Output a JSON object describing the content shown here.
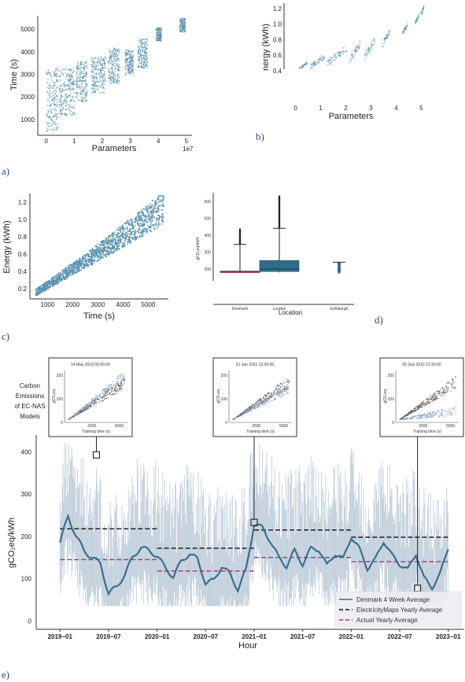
{
  "panel_labels": [
    "a)",
    "b)",
    "c)",
    "d)",
    "e)"
  ],
  "colors": {
    "scatter": "#5b93b0",
    "box_fill": "#2f6d8a",
    "median_magenta": "#b0206e",
    "noisy_series": "#aebfcf",
    "avg_line": "#3a6f90",
    "black_dash": "#111111",
    "actual_yearly": "#b0307a",
    "inset_blue": "#8aa6c6",
    "inset_dark": "#444444"
  },
  "chart_data": [
    {
      "id": "a",
      "type": "scatter",
      "xlabel": "Parameters",
      "ylabel": "Time (s)",
      "x_offset_text": "1e7",
      "xticks": [
        "0",
        "1",
        "2",
        "3",
        "4",
        "5"
      ],
      "yticks": [
        "1000",
        "2000",
        "3000",
        "4000",
        "5000"
      ],
      "xlim": [
        -0.3,
        5.2
      ],
      "ylim": [
        300,
        5600
      ],
      "clusters": [
        {
          "x": [
            0.0,
            0.4
          ],
          "y": [
            500,
            3300
          ]
        },
        {
          "x": [
            0.45,
            1.0
          ],
          "y": [
            1200,
            3300
          ]
        },
        {
          "x": [
            1.05,
            1.45
          ],
          "y": [
            1800,
            3600
          ]
        },
        {
          "x": [
            1.6,
            2.1
          ],
          "y": [
            2200,
            3800
          ]
        },
        {
          "x": [
            2.2,
            2.6
          ],
          "y": [
            2600,
            4200
          ]
        },
        {
          "x": [
            2.8,
            3.1
          ],
          "y": [
            3000,
            4100
          ]
        },
        {
          "x": [
            3.25,
            3.6
          ],
          "y": [
            3300,
            4600
          ]
        },
        {
          "x": [
            3.9,
            4.1
          ],
          "y": [
            4500,
            5100
          ]
        },
        {
          "x": [
            4.75,
            4.95
          ],
          "y": [
            4900,
            5500
          ]
        }
      ]
    },
    {
      "id": "b",
      "type": "scatter",
      "xlabel": "Parameters",
      "ylabel": "nergy (kWh)",
      "xticks": [
        "0",
        "1",
        "2",
        "3",
        "4",
        "5"
      ],
      "yticks": [
        "0.4",
        "0.6",
        "0.8",
        "1.0",
        "1.2"
      ],
      "xlim": [
        -0.3,
        5.3
      ],
      "ylim": [
        0.42,
        1.27
      ],
      "clusters": [
        {
          "x": [
            0.3,
            0.6
          ],
          "y": [
            0.42,
            0.52
          ]
        },
        {
          "x": [
            0.7,
            1.3
          ],
          "y": [
            0.42,
            0.62
          ]
        },
        {
          "x": [
            1.4,
            2.2
          ],
          "y": [
            0.45,
            0.75
          ]
        },
        {
          "x": [
            2.3,
            2.7
          ],
          "y": [
            0.5,
            0.8
          ]
        },
        {
          "x": [
            2.9,
            3.3
          ],
          "y": [
            0.55,
            0.85
          ]
        },
        {
          "x": [
            3.6,
            3.9
          ],
          "y": [
            0.7,
            0.95
          ]
        },
        {
          "x": [
            4.4,
            4.6
          ],
          "y": [
            0.85,
            1.05
          ]
        },
        {
          "x": [
            4.9,
            5.1
          ],
          "y": [
            1.0,
            1.18
          ]
        },
        {
          "x": [
            5.15,
            5.25
          ],
          "y": [
            1.12,
            1.25
          ]
        }
      ]
    },
    {
      "id": "c",
      "type": "scatter",
      "xlabel": "Time (s)",
      "ylabel": "Energy (kWh)",
      "xticks": [
        "1000",
        "2000",
        "3000",
        "4000",
        "5000"
      ],
      "yticks": [
        "0.2",
        "0.4",
        "0.6",
        "0.8",
        "1.0",
        "1.2"
      ],
      "xlim": [
        300,
        5800
      ],
      "ylim": [
        0.08,
        1.3
      ],
      "band": {
        "x_start": 500,
        "x_end": 5600,
        "y_start_low": 0.12,
        "y_start_high": 0.25,
        "y_end_low": 1.0,
        "y_end_high": 1.28
      }
    },
    {
      "id": "d",
      "type": "box",
      "xlabel": "Location",
      "ylabel": "gCO₂eq/kWh",
      "categories": [
        "Denmark",
        "London",
        "Edinburgh"
      ],
      "yticks": [
        "200",
        "300",
        "400",
        "500",
        "600"
      ],
      "ylim": [
        130,
        650
      ],
      "boxes": [
        {
          "q1": 180,
          "median": 183,
          "q3": 188,
          "whisker_low": 178,
          "whisker_high": 345,
          "outlier_range": [
            350,
            435
          ]
        },
        {
          "q1": 185,
          "median": 200,
          "q3": 250,
          "whisker_low": 180,
          "whisker_high": 440,
          "outlier_range": [
            445,
            630
          ]
        },
        {
          "q1": 180,
          "median": 195,
          "q3": 235,
          "whisker_low": 170,
          "whisker_high": 240,
          "outlier_range": null
        }
      ]
    },
    {
      "id": "e",
      "type": "line",
      "xlabel": "Hour",
      "ylabel": "gCO₂eq/kWh",
      "xticks": [
        "2019−01",
        "2019−07",
        "2020−01",
        "2020−07",
        "2021−01",
        "2021−07",
        "2022−01",
        "2022−07",
        "2023−01"
      ],
      "yticks": [
        "0",
        "100",
        "200",
        "300",
        "400"
      ],
      "ylim": [
        -20,
        440
      ],
      "xlim_months": [
        -1,
        49
      ],
      "series": [
        {
          "name": "Denmark 4 Week Average",
          "months": [
            0,
            1,
            2,
            3,
            4,
            5,
            6,
            7,
            8,
            9,
            10,
            11,
            12,
            13,
            14,
            15,
            16,
            17,
            18,
            19,
            20,
            21,
            22,
            23,
            24,
            25,
            26,
            27,
            28,
            29,
            30,
            31,
            32,
            33,
            34,
            35,
            36,
            37,
            38,
            39,
            40,
            41,
            42,
            43,
            44,
            45,
            46,
            47,
            48
          ],
          "values": [
            185,
            248,
            200,
            165,
            150,
            135,
            65,
            80,
            110,
            150,
            175,
            165,
            155,
            125,
            105,
            140,
            160,
            145,
            90,
            95,
            130,
            110,
            75,
            120,
            230,
            220,
            190,
            150,
            130,
            165,
            135,
            170,
            170,
            130,
            160,
            145,
            200,
            170,
            125,
            145,
            190,
            155,
            135,
            120,
            160,
            100,
            80,
            110,
            175
          ]
        }
      ],
      "yearly_lines": [
        {
          "name": "ElectricityMaps Yearly Average",
          "segments": [
            {
              "from": 2019,
              "value": 218
            },
            {
              "from": 2020,
              "value": 172
            },
            {
              "from": 2021,
              "value": 215
            },
            {
              "from": 2022,
              "value": 198
            }
          ]
        },
        {
          "name": "Actual Yearly Average",
          "segments": [
            {
              "from": 2019,
              "value": 145
            },
            {
              "from": 2020,
              "value": 118
            },
            {
              "from": 2021,
              "value": 150
            },
            {
              "from": 2022,
              "value": 140
            }
          ]
        }
      ],
      "side_caption": [
        "Carbon",
        "Emissions",
        "of EC-NAS",
        "Models"
      ],
      "insets": [
        {
          "title": "14 May 2019 05:00:00",
          "marker_month": 4.5,
          "marker_value": 393,
          "ylabel": "gCO₂eq",
          "xlabel": "Training time (s)",
          "yticks": [
            "0",
            "100",
            "200"
          ],
          "xticks": [
            "2500",
            "5000"
          ],
          "blue_slope": "steep"
        },
        {
          "title": "01 Jan 2021 12:00:00",
          "marker_month": 24.0,
          "marker_value": 233,
          "ylabel": "gCO₂eq",
          "xlabel": "Training time (s)",
          "yticks": [
            "0",
            "100",
            "200"
          ],
          "xticks": [
            "2500",
            "5000"
          ],
          "blue_slope": "same"
        },
        {
          "title": "05 Sep 2022 13:30:00",
          "marker_month": 44.2,
          "marker_value": 77,
          "ylabel": "gCO₂eq",
          "xlabel": "Training time (s)",
          "yticks": [
            "0",
            "100",
            "200"
          ],
          "xticks": [
            "2500",
            "5000"
          ],
          "blue_slope": "shallow"
        }
      ],
      "legend": [
        "Denmark 4 Week Average",
        "ElectricityMaps Yearly Average",
        "Actual Yearly Average"
      ],
      "legend_location": "lower-right"
    }
  ]
}
